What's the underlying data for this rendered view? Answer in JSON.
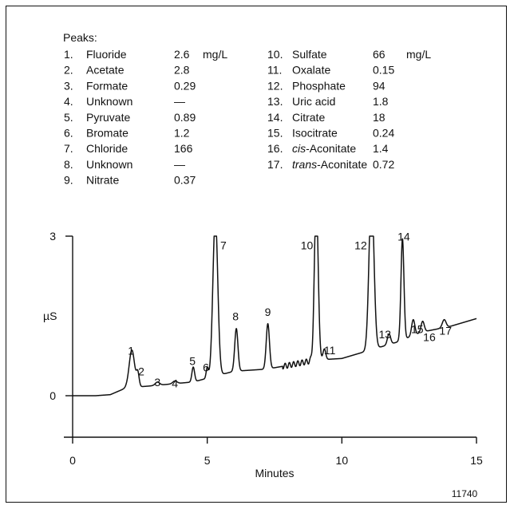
{
  "peaks_title": "Peaks:",
  "peaks": [
    {
      "num": "1.",
      "name": "Fluoride",
      "value": "2.6",
      "unit": "mg/L"
    },
    {
      "num": "2.",
      "name": "Acetate",
      "value": "2.8",
      "unit": ""
    },
    {
      "num": "3.",
      "name": "Formate",
      "value": "0.29",
      "unit": ""
    },
    {
      "num": "4.",
      "name": "Unknown",
      "value": "—",
      "unit": ""
    },
    {
      "num": "5.",
      "name": "Pyruvate",
      "value": "0.89",
      "unit": ""
    },
    {
      "num": "6.",
      "name": "Bromate",
      "value": "1.2",
      "unit": ""
    },
    {
      "num": "7.",
      "name": "Chloride",
      "value": "166",
      "unit": ""
    },
    {
      "num": "8.",
      "name": "Unknown",
      "value": "—",
      "unit": ""
    },
    {
      "num": "9.",
      "name": "Nitrate",
      "value": "0.37",
      "unit": ""
    },
    {
      "num": "10.",
      "name": "Sulfate",
      "value": "66",
      "unit": "mg/L"
    },
    {
      "num": "11.",
      "name": "Oxalate",
      "value": "0.15",
      "unit": ""
    },
    {
      "num": "12.",
      "name": "Phosphate",
      "value": "94",
      "unit": ""
    },
    {
      "num": "13.",
      "name": "Uric acid",
      "value": "1.8",
      "unit": ""
    },
    {
      "num": "14.",
      "name": "Citrate",
      "value": "18",
      "unit": ""
    },
    {
      "num": "15.",
      "name": "Isocitrate",
      "value": "0.24",
      "unit": ""
    },
    {
      "num": "16.",
      "name_italic": "cis",
      "name": "-Aconitate",
      "value": "1.4",
      "unit": ""
    },
    {
      "num": "17.",
      "name_italic": "trans",
      "name": "-Aconitate",
      "value": "0.72",
      "unit": ""
    }
  ],
  "figure_id": "11740",
  "chart_data": {
    "type": "line",
    "title": "",
    "xlabel": "Minutes",
    "ylabel": "µS",
    "xlim": [
      0,
      15
    ],
    "ylim": [
      -1.6,
      3
    ],
    "x_ticks": [
      "0",
      "5",
      "10",
      "15"
    ],
    "y_ticks": [
      "0",
      "3"
    ],
    "y_tick_values": [
      0,
      3
    ],
    "baseline": [
      [
        0,
        0
      ],
      [
        0.85,
        0
      ],
      [
        1.4,
        0.02
      ],
      [
        2.0,
        0.15
      ],
      [
        2.8,
        0.18
      ],
      [
        4.5,
        0.26
      ],
      [
        5.0,
        0.33
      ],
      [
        6.0,
        0.46
      ],
      [
        7.2,
        0.5
      ],
      [
        8.0,
        0.57
      ],
      [
        9.0,
        0.67
      ],
      [
        10.0,
        0.7
      ],
      [
        11.0,
        0.85
      ],
      [
        12.0,
        1.0
      ],
      [
        13.0,
        1.2
      ],
      [
        14.0,
        1.3
      ],
      [
        15.0,
        1.45
      ]
    ],
    "peaks": [
      {
        "label": "1",
        "x": 2.2,
        "height": 0.7,
        "width": 0.1
      },
      {
        "label": "2",
        "x": 2.42,
        "height": 0.25,
        "width": 0.05
      },
      {
        "label": "3",
        "x": 3.15,
        "height": 0.06,
        "width": 0.08
      },
      {
        "label": "4",
        "x": 3.8,
        "height": 0.05,
        "width": 0.08
      },
      {
        "label": "5",
        "x": 4.48,
        "height": 0.28,
        "width": 0.05
      },
      {
        "label": "6",
        "x": 5.0,
        "height": 0.2,
        "width": 0.04
      },
      {
        "label": "7",
        "x": 5.3,
        "height": 3.0,
        "width": 0.09,
        "offscale": true
      },
      {
        "label": "8",
        "x": 6.08,
        "height": 0.8,
        "width": 0.06
      },
      {
        "label": "9",
        "x": 7.25,
        "height": 0.85,
        "width": 0.06
      },
      {
        "label": "10",
        "x": 9.05,
        "height": 3.0,
        "width": 0.07,
        "offscale": true
      },
      {
        "label": "11",
        "x": 9.35,
        "height": 0.2,
        "width": 0.05
      },
      {
        "label": "12",
        "x": 11.1,
        "height": 3.0,
        "width": 0.09,
        "offscale": true
      },
      {
        "label": "13",
        "x": 11.75,
        "height": 0.2,
        "width": 0.06
      },
      {
        "label": "14",
        "x": 12.25,
        "height": 1.9,
        "width": 0.055
      },
      {
        "label": "15",
        "x": 12.65,
        "height": 0.3,
        "width": 0.06
      },
      {
        "label": "16",
        "x": 13.0,
        "height": 0.2,
        "width": 0.06
      },
      {
        "label": "17",
        "x": 13.8,
        "height": 0.15,
        "width": 0.07
      }
    ]
  }
}
